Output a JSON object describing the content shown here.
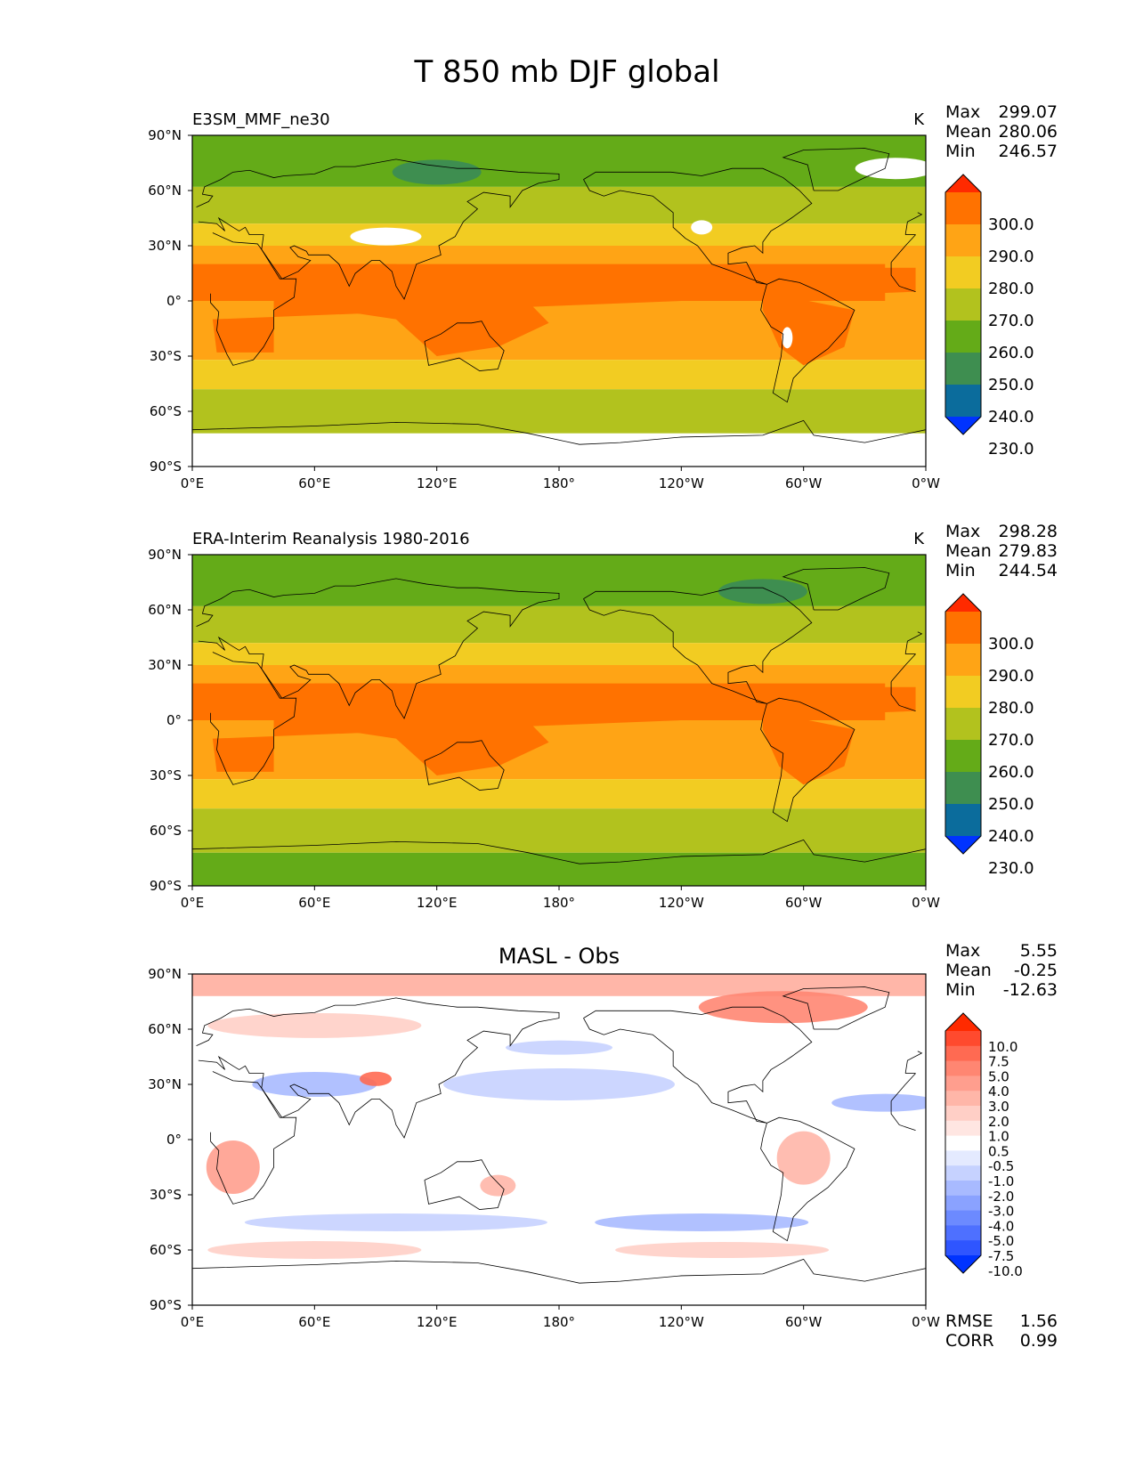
{
  "figure": {
    "title": "T 850 mb DJF global",
    "panels": [
      {
        "title_left": "E3SM_MMF_ne30",
        "title_center": "",
        "units": "K",
        "stats": [
          {
            "label": "Max",
            "value": "299.07"
          },
          {
            "label": "Mean",
            "value": "280.06"
          },
          {
            "label": "Min",
            "value": "246.57"
          }
        ],
        "colorbar": {
          "labels": [
            "300.0",
            "290.0",
            "280.0",
            "270.0",
            "260.0",
            "250.0",
            "240.0",
            "230.0"
          ],
          "colors": [
            "#ff2a00",
            "#ff7200",
            "#ffa415",
            "#f2cc22",
            "#b2c21e",
            "#64ab18",
            "#3e8e50",
            "#0b6c9c",
            "#0033ff"
          ]
        },
        "field_colors": [
          "#64ab18",
          "#b2c21e",
          "#f2cc22",
          "#ffa415",
          "#ff7200"
        ]
      },
      {
        "title_left": "ERA-Interim Reanalysis 1980-2016",
        "title_center": "",
        "units": "K",
        "stats": [
          {
            "label": "Max",
            "value": "298.28"
          },
          {
            "label": "Mean",
            "value": "279.83"
          },
          {
            "label": "Min",
            "value": "244.54"
          }
        ],
        "colorbar": {
          "labels": [
            "300.0",
            "290.0",
            "280.0",
            "270.0",
            "260.0",
            "250.0",
            "240.0",
            "230.0"
          ],
          "colors": [
            "#ff2a00",
            "#ff7200",
            "#ffa415",
            "#f2cc22",
            "#b2c21e",
            "#64ab18",
            "#3e8e50",
            "#0b6c9c",
            "#0033ff"
          ]
        },
        "field_colors": [
          "#64ab18",
          "#b2c21e",
          "#f2cc22",
          "#ffa415",
          "#ff7200"
        ]
      },
      {
        "title_left": "",
        "title_center": "MASL - Obs",
        "units": "",
        "stats": [
          {
            "label": "Max",
            "value": "5.55"
          },
          {
            "label": "Mean",
            "value": "-0.25"
          },
          {
            "label": "Min",
            "value": "-12.63"
          }
        ],
        "colorbar": {
          "labels": [
            "10.0",
            "7.5",
            "5.0",
            "4.0",
            "3.0",
            "2.0",
            "1.0",
            "0.5",
            "-0.5",
            "-1.0",
            "-2.0",
            "-3.0",
            "-4.0",
            "-5.0",
            "-7.5",
            "-10.0"
          ],
          "colors": [
            "#ff2a00",
            "#ff4a2e",
            "#ff6a52",
            "#ff8672",
            "#ff9e8e",
            "#ffb6a8",
            "#ffcfc6",
            "#ffe6e2",
            "#ffffff",
            "#e4eaff",
            "#c6d2ff",
            "#a8baff",
            "#8aa2ff",
            "#6c8aff",
            "#4e70ff",
            "#2f55ff",
            "#0033ff"
          ]
        },
        "metrics": [
          {
            "label": "RMSE",
            "value": "1.56"
          },
          {
            "label": "CORR",
            "value": "0.99"
          }
        ]
      }
    ],
    "x_ticks": [
      "0°E",
      "60°E",
      "120°E",
      "180°",
      "120°W",
      "60°W",
      "0°W"
    ],
    "y_ticks": [
      "90°N",
      "60°N",
      "30°N",
      "0°",
      "30°S",
      "60°S",
      "90°S"
    ]
  }
}
